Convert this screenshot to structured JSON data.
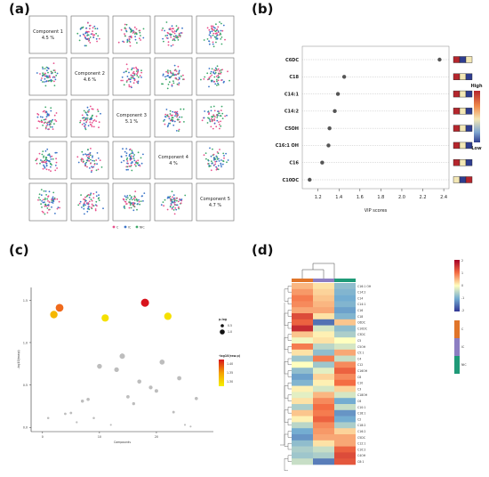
{
  "panels": {
    "a_label": "(a)",
    "b_label": "(b)",
    "c_label": "(c)",
    "d_label": "(d)"
  },
  "chart_data": [
    {
      "type": "scatter",
      "panel": "a",
      "components": [
        {
          "name": "Component 1",
          "pct": "4.5 %"
        },
        {
          "name": "Component 2",
          "pct": "4.6 %"
        },
        {
          "name": "Component 3",
          "pct": "5.1 %"
        },
        {
          "name": "Component 4",
          "pct": "4 %"
        },
        {
          "name": "Component 5",
          "pct": "4.7 %"
        }
      ],
      "legend": [
        {
          "label": "C",
          "color": "#e8508c"
        },
        {
          "label": "IC",
          "color": "#3a74c8"
        },
        {
          "label": "NIC",
          "color": "#3da86a"
        }
      ]
    },
    {
      "type": "scatter",
      "panel": "b",
      "xlabel": "VIP scores",
      "xlim": [
        1.05,
        2.45
      ],
      "xticks": [
        "1.2",
        "1.4",
        "1.6",
        "1.8",
        "2.0",
        "2.2",
        "2.4"
      ],
      "xtick_values": [
        1.2,
        1.4,
        1.6,
        1.8,
        2.0,
        2.2,
        2.4
      ],
      "rows": [
        {
          "name": "C6DC",
          "vip": 2.36,
          "cells": [
            "#b5262d",
            "#2f3d8f",
            "#f3e7b5"
          ]
        },
        {
          "name": "C18",
          "vip": 1.45,
          "cells": [
            "#b5262d",
            "#f3e7b5",
            "#2f3d8f"
          ]
        },
        {
          "name": "C14:1",
          "vip": 1.39,
          "cells": [
            "#b5262d",
            "#f3e7b5",
            "#2f3d8f"
          ]
        },
        {
          "name": "C14:2",
          "vip": 1.36,
          "cells": [
            "#b5262d",
            "#f3e7b5",
            "#2f3d8f"
          ]
        },
        {
          "name": "C5OH",
          "vip": 1.31,
          "cells": [
            "#b5262d",
            "#f3e7b5",
            "#2f3d8f"
          ]
        },
        {
          "name": "C16:1 OH",
          "vip": 1.3,
          "cells": [
            "#b5262d",
            "#f3e7b5",
            "#2f3d8f"
          ]
        },
        {
          "name": "C16",
          "vip": 1.24,
          "cells": [
            "#b5262d",
            "#f3e7b5",
            "#2f3d8f"
          ]
        },
        {
          "name": "C10DC",
          "vip": 1.12,
          "cells": [
            "#f3e7b5",
            "#2f3d8f",
            "#b5262d"
          ]
        }
      ],
      "colorbar": {
        "high": "High",
        "low": "Low"
      }
    },
    {
      "type": "scatter",
      "panel": "c",
      "xlabel": "Compounds",
      "ylabel": "-log10(raw.p)",
      "xlim": [
        -2,
        30
      ],
      "ylim": [
        -0.05,
        1.65
      ],
      "xticks": [
        "0",
        "10",
        "20"
      ],
      "xtick_values": [
        0,
        10,
        20
      ],
      "yticks": [
        "0.0",
        "0.5",
        "1.0",
        "1.5"
      ],
      "ytick_values": [
        0,
        0.5,
        1.0,
        1.5
      ],
      "points": [
        {
          "x": 1,
          "y": 0.11,
          "c": "#bdbdbd"
        },
        {
          "x": 2,
          "y": 1.33,
          "c": "#f5b700"
        },
        {
          "x": 3,
          "y": 1.41,
          "c": "#f06a1c"
        },
        {
          "x": 4,
          "y": 0.16,
          "c": "#bdbdbd"
        },
        {
          "x": 5,
          "y": 0.17,
          "c": "#bdbdbd"
        },
        {
          "x": 6,
          "y": 0.06,
          "c": "#bdbdbd"
        },
        {
          "x": 7,
          "y": 0.31,
          "c": "#bdbdbd"
        },
        {
          "x": 8,
          "y": 0.33,
          "c": "#bdbdbd"
        },
        {
          "x": 9,
          "y": 0.11,
          "c": "#bdbdbd"
        },
        {
          "x": 10,
          "y": 0.72,
          "c": "#bdbdbd"
        },
        {
          "x": 11,
          "y": 1.29,
          "c": "#f5e000"
        },
        {
          "x": 12,
          "y": 0.03,
          "c": "#bdbdbd"
        },
        {
          "x": 13,
          "y": 0.68,
          "c": "#bdbdbd"
        },
        {
          "x": 14,
          "y": 0.84,
          "c": "#bdbdbd"
        },
        {
          "x": 15,
          "y": 0.36,
          "c": "#bdbdbd"
        },
        {
          "x": 16,
          "y": 0.28,
          "c": "#bdbdbd"
        },
        {
          "x": 17,
          "y": 0.54,
          "c": "#bdbdbd"
        },
        {
          "x": 18,
          "y": 1.47,
          "c": "#d8141d"
        },
        {
          "x": 19,
          "y": 0.47,
          "c": "#bdbdbd"
        },
        {
          "x": 20,
          "y": 0.43,
          "c": "#bdbdbd"
        },
        {
          "x": 21,
          "y": 0.77,
          "c": "#bdbdbd"
        },
        {
          "x": 22,
          "y": 1.31,
          "c": "#f5e000"
        },
        {
          "x": 23,
          "y": 0.18,
          "c": "#bdbdbd"
        },
        {
          "x": 24,
          "y": 0.58,
          "c": "#bdbdbd"
        },
        {
          "x": 25,
          "y": 0.03,
          "c": "#bdbdbd"
        },
        {
          "x": 26,
          "y": 0.01,
          "c": "#bdbdbd"
        },
        {
          "x": 27,
          "y": 0.34,
          "c": "#bdbdbd"
        }
      ],
      "legend_size_title": "p.log",
      "legend_size_items": [
        "0.5",
        "1.0"
      ],
      "legend_color_title": "-log10(raw.p)",
      "legend_color_ticks": [
        "1.40",
        "1.35",
        "1.30"
      ]
    },
    {
      "type": "heatmap",
      "panel": "d",
      "columns": [
        "C",
        "IC",
        "NIC"
      ],
      "column_colors": [
        "#e0752a",
        "#8c7ec2",
        "#1f9a78"
      ],
      "row_labels": [
        "C16:1 OH",
        "C14:2",
        "C14",
        "C14:1",
        "C16",
        "C18",
        "C6DC",
        "C10DC",
        "C3DC",
        "C5",
        "C5OH",
        "C5:1",
        "C4",
        "C12",
        "C16OH",
        "C8",
        "C10",
        "C3",
        "C18OH",
        "C6",
        "C10:1",
        "C18:1",
        "C2",
        "C18:2",
        "C16:2",
        "C5DC",
        "C12:1",
        "C10:2",
        "C4OH",
        "C8:1"
      ],
      "values": [
        [
          0.5,
          0.2,
          -0.8
        ],
        [
          0.7,
          0.3,
          -0.9
        ],
        [
          0.9,
          0.4,
          -1.0
        ],
        [
          0.8,
          0.5,
          -0.9
        ],
        [
          0.6,
          0.6,
          -1.1
        ],
        [
          1.3,
          0.2,
          -0.9
        ],
        [
          1.1,
          -1.5,
          0.4
        ],
        [
          1.6,
          -0.3,
          -0.8
        ],
        [
          0.4,
          0.1,
          -0.6
        ],
        [
          -0.1,
          0.2,
          0.0
        ],
        [
          0.9,
          -0.5,
          -0.3
        ],
        [
          0.2,
          -0.8,
          0.6
        ],
        [
          -0.7,
          0.9,
          -0.4
        ],
        [
          0.0,
          -0.7,
          0.8
        ],
        [
          -0.8,
          -0.2,
          1.1
        ],
        [
          -1.1,
          0.3,
          0.8
        ],
        [
          -0.9,
          0.1,
          1.0
        ],
        [
          0.1,
          -0.3,
          0.3
        ],
        [
          -0.2,
          0.5,
          -0.3
        ],
        [
          0.2,
          0.8,
          -1.0
        ],
        [
          -0.6,
          1.0,
          -0.4
        ],
        [
          0.4,
          0.9,
          -1.2
        ],
        [
          0.1,
          1.1,
          -1.0
        ],
        [
          -0.5,
          0.8,
          -0.6
        ],
        [
          -1.0,
          0.7,
          0.3
        ],
        [
          -1.2,
          0.6,
          0.6
        ],
        [
          -0.8,
          0.2,
          0.6
        ],
        [
          -0.6,
          -0.4,
          1.1
        ],
        [
          -0.7,
          -0.6,
          1.3
        ],
        [
          -0.4,
          -1.4,
          1.2
        ]
      ],
      "legend_ticks": [
        "2",
        "1",
        "0",
        "-1",
        "-2"
      ]
    }
  ]
}
